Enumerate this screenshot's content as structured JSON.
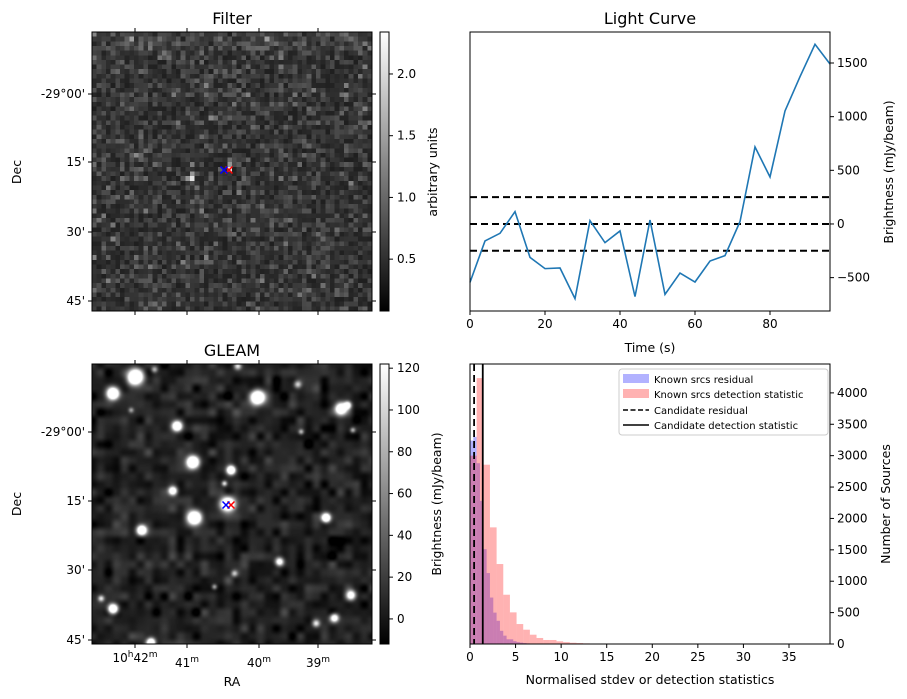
{
  "panels": {
    "filter": {
      "title": "Filter",
      "ylabel": "Dec",
      "dec_ticks": [
        "-29°00'",
        "15'",
        "30'",
        "45'"
      ],
      "colorbar": {
        "label": "arbitrary units",
        "ticks": [
          "0.5",
          "1.0",
          "1.5",
          "2.0"
        ],
        "tick_values": [
          0.5,
          1.0,
          1.5,
          2.0
        ],
        "range": [
          0.08,
          2.34
        ],
        "cmap": "gray"
      }
    },
    "gleam": {
      "title": "GLEAM",
      "xlabel": "RA",
      "ylabel": "Dec",
      "dec_ticks": [
        "-29°00'",
        "15'",
        "30'",
        "45'"
      ],
      "ra_ticks": [
        {
          "h": "10",
          "hs": "h",
          "m": "42",
          "ms": "m"
        },
        {
          "h": "",
          "hs": "",
          "m": "41",
          "ms": "m"
        },
        {
          "h": "",
          "hs": "",
          "m": "40",
          "ms": "m"
        },
        {
          "h": "",
          "hs": "",
          "m": "39",
          "ms": "m"
        }
      ],
      "colorbar": {
        "label": "Brightness (mJy/beam)",
        "ticks": [
          "0",
          "20",
          "40",
          "60",
          "80",
          "100",
          "120"
        ],
        "tick_values": [
          0,
          20,
          40,
          60,
          80,
          100,
          120
        ],
        "range": [
          -12,
          122
        ],
        "cmap": "gray"
      }
    },
    "markers": {
      "candidate_color": "#0000ff",
      "reference_color": "#ff0000"
    }
  },
  "chart_data": [
    {
      "type": "line",
      "title": "Light Curve",
      "xlabel": "Time (s)",
      "ylabel": "Brightness (mJy/beam)",
      "xlim": [
        0,
        96
      ],
      "ylim": [
        -811,
        1789
      ],
      "xticks": [
        "0",
        "20",
        "40",
        "60",
        "80"
      ],
      "xtick_values": [
        0,
        20,
        40,
        60,
        80
      ],
      "yticks": [
        "−500",
        "0",
        "500",
        "1000",
        "1500"
      ],
      "ytick_values": [
        -500,
        0,
        500,
        1000,
        1500
      ],
      "series": [
        {
          "name": "light curve",
          "color": "#1f77b4",
          "x": [
            0,
            4,
            8,
            12,
            16,
            20,
            24,
            28,
            32,
            36,
            40,
            44,
            48,
            52,
            56,
            60,
            64,
            68,
            72,
            76,
            80,
            84,
            88,
            92,
            96
          ],
          "y": [
            -544,
            -158,
            -87,
            115,
            -311,
            -416,
            -410,
            -696,
            31,
            -174,
            -65,
            -677,
            37,
            -656,
            -457,
            -541,
            -345,
            -295,
            22,
            718,
            438,
            1053,
            1373,
            1675,
            1491
          ]
        }
      ],
      "hlines": [
        {
          "y": 250,
          "style": "dashed"
        },
        {
          "y": 0,
          "style": "dashed"
        },
        {
          "y": -250,
          "style": "dashed"
        }
      ]
    },
    {
      "type": "bar",
      "subtype": "histogram",
      "xlabel": "Normalised stdev or detection statistics",
      "ylabel": "Number of Sources",
      "xlim": [
        0,
        39.5
      ],
      "ylim": [
        0,
        4460
      ],
      "xticks": [
        "0",
        "5",
        "10",
        "15",
        "20",
        "25",
        "30",
        "35"
      ],
      "xtick_values": [
        0,
        5,
        10,
        15,
        20,
        25,
        30,
        35
      ],
      "yticks": [
        "0",
        "500",
        "1000",
        "1500",
        "2000",
        "2500",
        "3000",
        "3500",
        "4000"
      ],
      "ytick_values": [
        0,
        500,
        1000,
        1500,
        2000,
        2500,
        3000,
        3500,
        4000
      ],
      "legend_position": "top-right",
      "series": [
        {
          "name": "Known srcs residual",
          "color": "#0000ff",
          "alpha": 0.3,
          "bin_start": 0,
          "bin_width": 0.365,
          "counts": [
            3240,
            3300,
            2880,
            2280,
            1510,
            1130,
            740,
            500,
            370,
            210,
            133,
            75,
            75,
            45,
            30,
            22,
            15,
            10,
            8,
            6,
            5,
            4,
            3,
            3,
            2,
            2,
            2,
            1,
            1,
            1,
            1,
            1,
            1,
            0,
            0,
            0,
            1,
            0,
            0,
            0,
            0,
            0,
            0,
            0,
            0,
            0,
            0,
            1
          ]
        },
        {
          "name": "Known srcs detection statistic",
          "color": "#ff0000",
          "alpha": 0.3,
          "bin_start": 0,
          "bin_width": 0.73,
          "counts": [
            3000,
            4236,
            2856,
            1858,
            1274,
            785,
            504,
            318,
            228,
            148,
            96,
            64,
            64,
            43,
            30,
            20,
            15,
            10,
            8,
            6,
            6,
            5,
            4,
            3,
            3,
            2,
            2,
            3,
            2,
            6,
            3,
            2,
            2,
            3,
            2,
            1,
            2,
            1,
            0,
            0,
            0,
            3,
            0,
            0,
            0,
            0,
            0,
            0,
            1,
            0,
            1,
            1,
            0,
            0
          ]
        }
      ],
      "vlines": [
        {
          "name": "Candidate residual",
          "x": 0.45,
          "style": "dashed"
        },
        {
          "name": "Candidate detection statistic",
          "x": 1.4,
          "style": "solid"
        }
      ]
    }
  ]
}
